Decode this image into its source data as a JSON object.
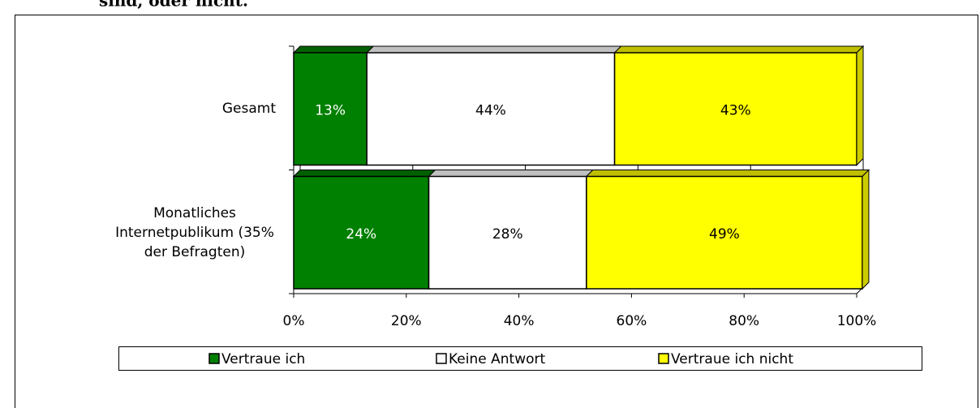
{
  "caption": "sind, oder nicht.",
  "chart_data": {
    "type": "stacked-bar-horizontal",
    "categories": [
      "Gesamt",
      "Monatliches Internetpublikum (35% der Befragten)"
    ],
    "series": [
      {
        "name": "Vertraue ich",
        "color": "#008000",
        "values": [
          13,
          24
        ],
        "value_labels": [
          "13%",
          "24%"
        ]
      },
      {
        "name": "Keine Antwort",
        "color": "#ffffff",
        "values": [
          44,
          28
        ],
        "value_labels": [
          "44%",
          "28%"
        ]
      },
      {
        "name": "Vertraue ich nicht",
        "color": "#ffff00",
        "values": [
          43,
          49
        ],
        "value_labels": [
          "43%",
          "49%"
        ]
      }
    ],
    "xlim": [
      0,
      100
    ],
    "xticks": [
      {
        "value": 0,
        "label": "0%"
      },
      {
        "value": 20,
        "label": "20%"
      },
      {
        "value": 40,
        "label": "40%"
      },
      {
        "value": 60,
        "label": "60%"
      },
      {
        "value": 80,
        "label": "80%"
      },
      {
        "value": 100,
        "label": "100%"
      }
    ],
    "grid": true,
    "legend": "bottom"
  }
}
